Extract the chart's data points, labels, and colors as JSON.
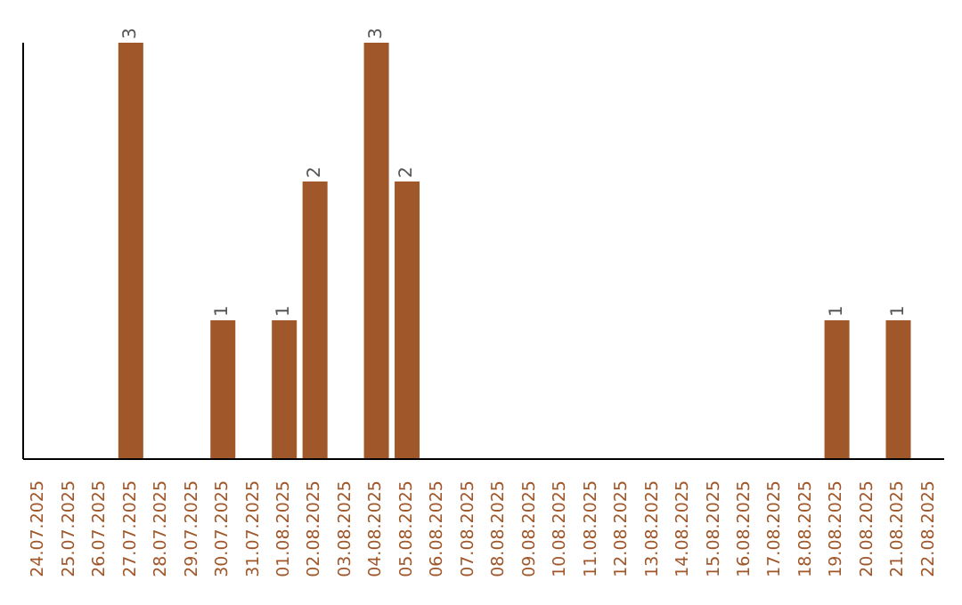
{
  "chart_data": {
    "type": "bar",
    "categories": [
      "24.07.2025",
      "25.07.2025",
      "26.07.2025",
      "27.07.2025",
      "28.07.2025",
      "29.07.2025",
      "30.07.2025",
      "31.07.2025",
      "01.08.2025",
      "02.08.2025",
      "03.08.2025",
      "04.08.2025",
      "05.08.2025",
      "06.08.2025",
      "07.08.2025",
      "08.08.2025",
      "09.08.2025",
      "10.08.2025",
      "11.08.2025",
      "12.08.2025",
      "13.08.2025",
      "14.08.2025",
      "15.08.2025",
      "16.08.2025",
      "17.08.2025",
      "18.08.2025",
      "19.08.2025",
      "20.08.2025",
      "21.08.2025",
      "22.08.2025"
    ],
    "values": [
      0,
      0,
      0,
      3,
      0,
      0,
      1,
      0,
      1,
      2,
      0,
      3,
      2,
      0,
      0,
      0,
      0,
      0,
      0,
      0,
      0,
      0,
      0,
      0,
      0,
      0,
      1,
      0,
      1,
      0
    ],
    "value_labels": [
      null,
      null,
      null,
      "3",
      null,
      null,
      "1",
      null,
      "1",
      "2",
      null,
      "3",
      "2",
      null,
      null,
      null,
      null,
      null,
      null,
      null,
      null,
      null,
      null,
      null,
      null,
      null,
      "1",
      null,
      "1",
      null
    ],
    "color": "#a0572a",
    "grid": false,
    "legend": false
  }
}
